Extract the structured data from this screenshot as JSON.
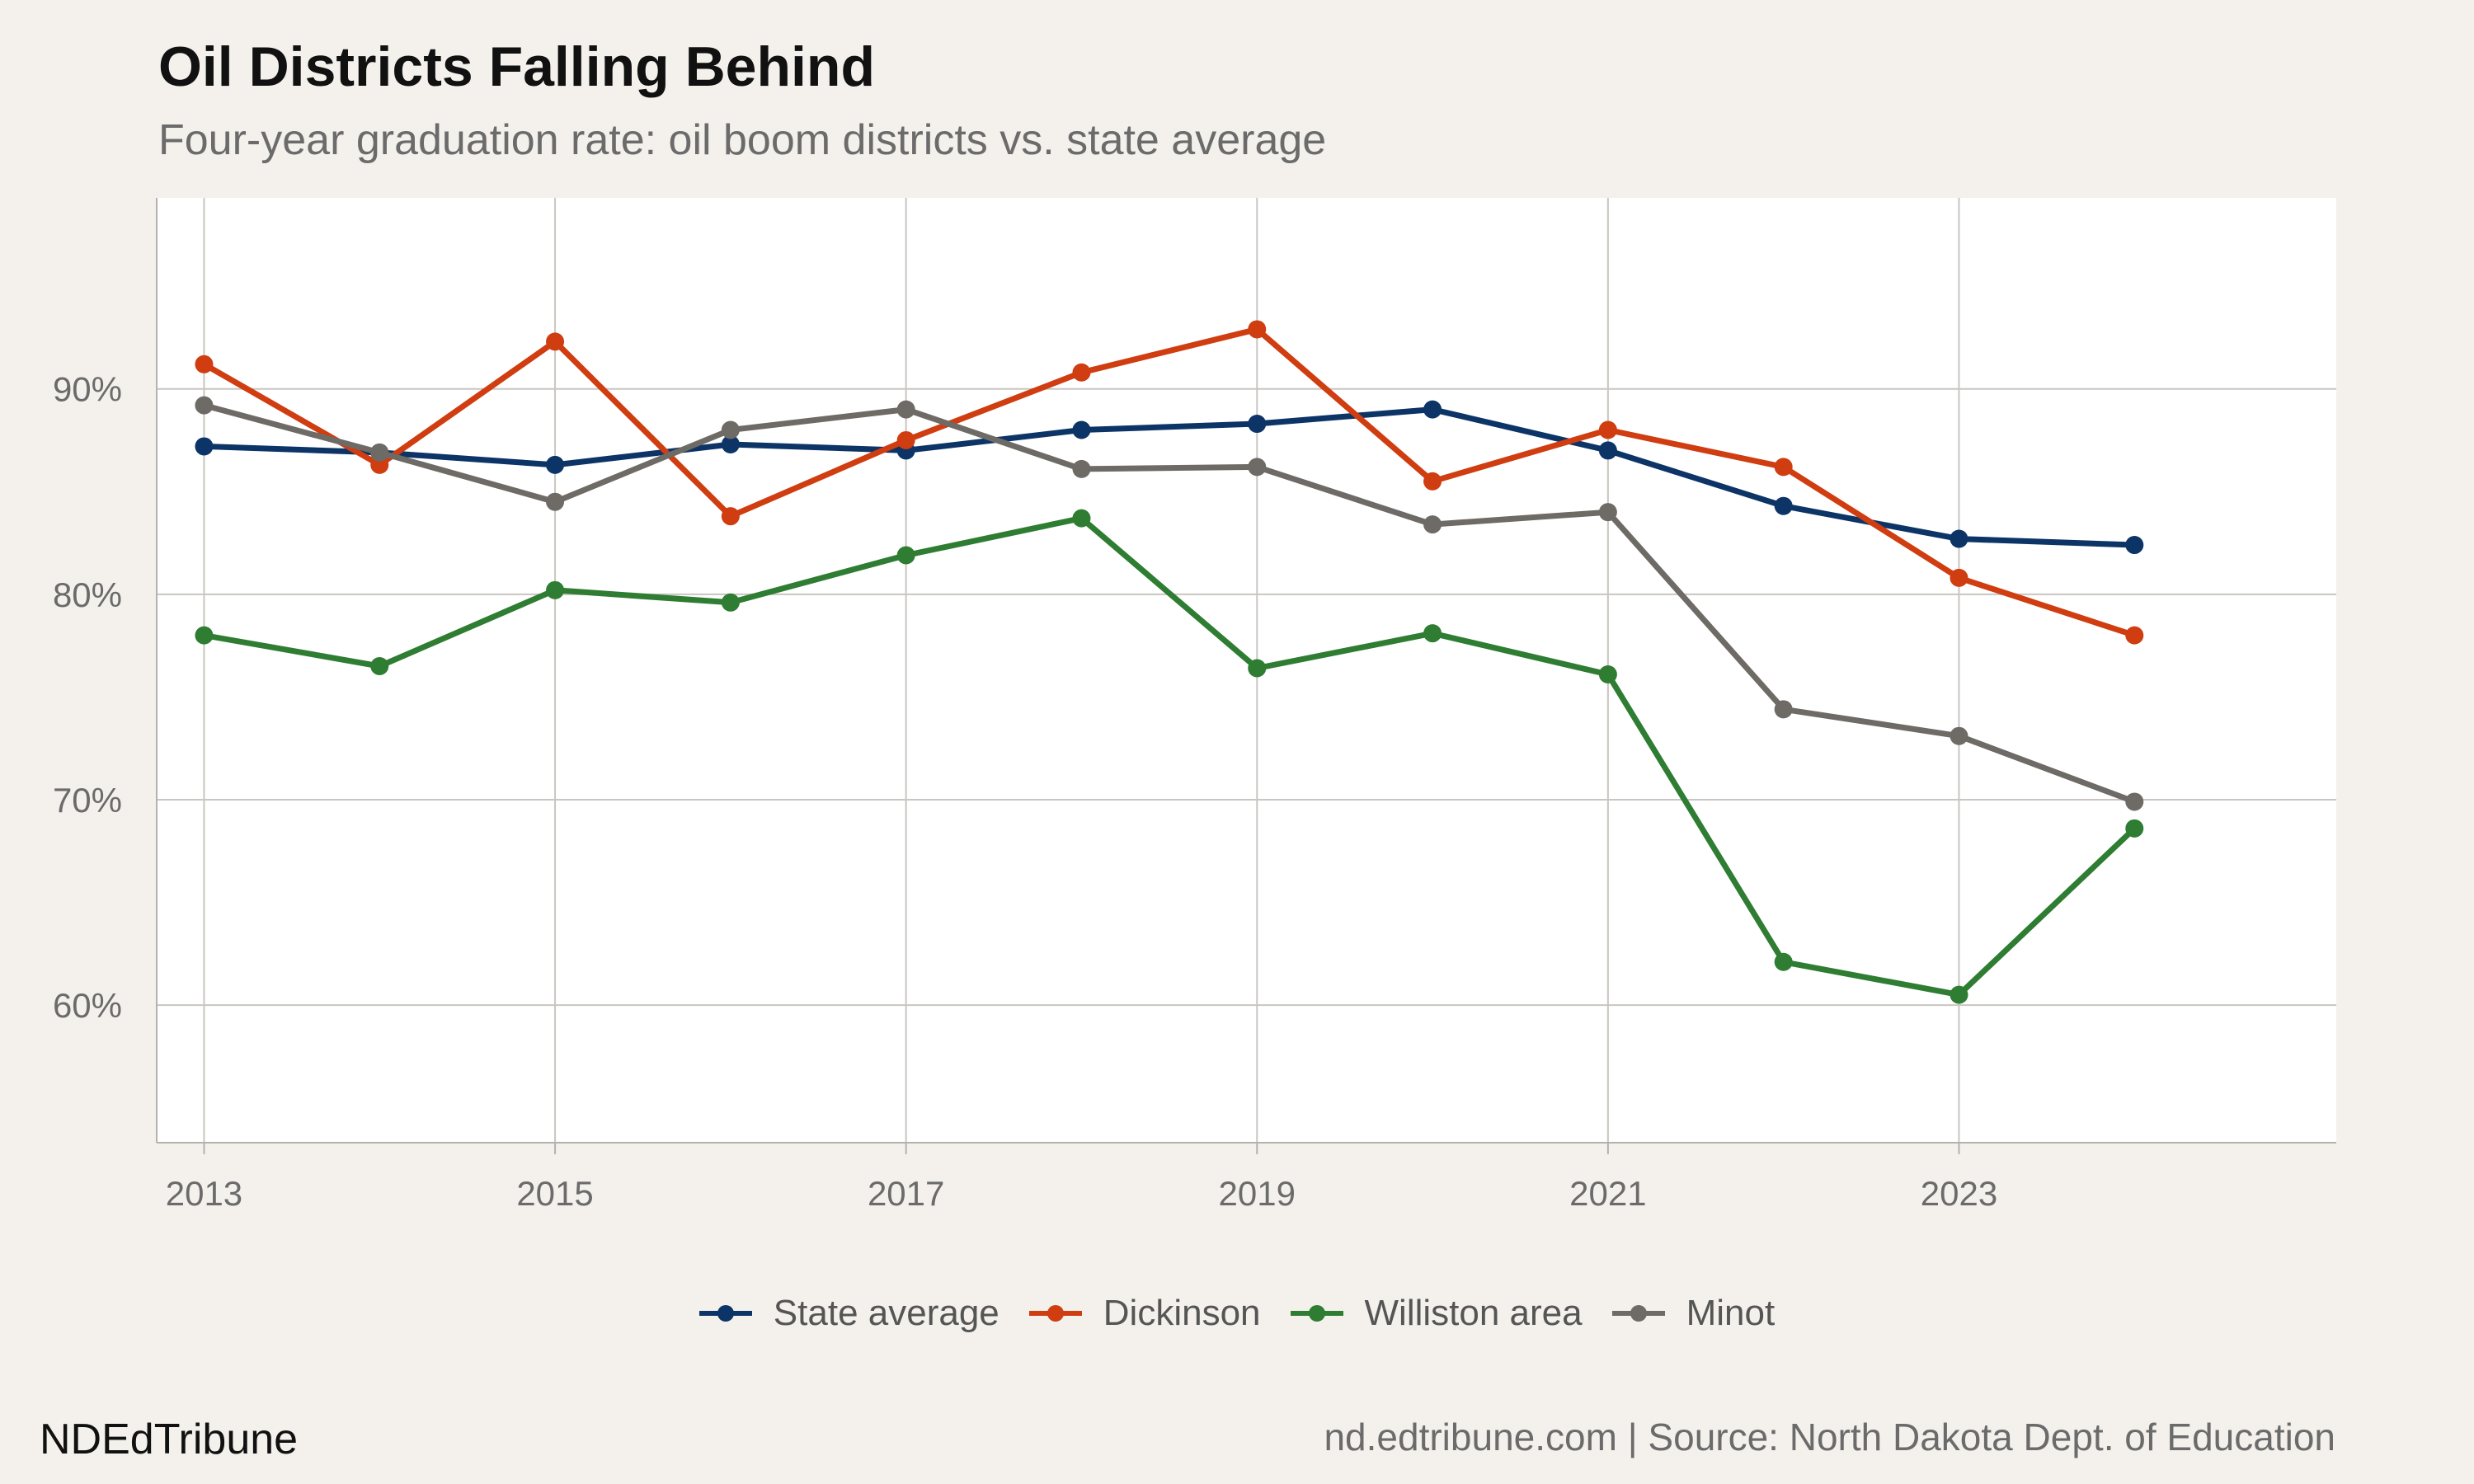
{
  "header": {
    "title": "Oil Districts Falling Behind",
    "subtitle": "Four-year graduation rate: oil boom districts vs. state average"
  },
  "footer": {
    "brand": "NDEdTribune",
    "source": "nd.edtribune.com | Source: North Dakota Dept. of Education"
  },
  "chart_data": {
    "type": "line",
    "title": "Oil Districts Falling Behind",
    "subtitle": "Four-year graduation rate: oil boom districts vs. state average",
    "xlabel": "",
    "ylabel": "",
    "x": [
      2013,
      2014,
      2015,
      2016,
      2017,
      2018,
      2019,
      2020,
      2021,
      2022,
      2023,
      2024
    ],
    "x_ticks": [
      "2013",
      "2015",
      "2017",
      "2019",
      "2021",
      "2023"
    ],
    "y_ticks": [
      "60%",
      "70%",
      "80%",
      "90%"
    ],
    "xlim": [
      2012.73,
      2025.15
    ],
    "ylim": [
      53.3,
      99.3
    ],
    "grid": true,
    "legend_position": "bottom",
    "series": [
      {
        "name": "State average",
        "color": "#0d3466",
        "values": [
          87.2,
          86.9,
          86.3,
          87.3,
          87.0,
          88.0,
          88.3,
          89.0,
          87.0,
          84.3,
          82.7,
          82.4
        ]
      },
      {
        "name": "Dickinson",
        "color": "#cf3d10",
        "values": [
          91.2,
          86.3,
          92.3,
          83.8,
          87.5,
          90.8,
          92.9,
          85.5,
          88.0,
          86.2,
          80.8,
          78.0
        ]
      },
      {
        "name": "Williston area",
        "color": "#2e7d32",
        "values": [
          78.0,
          76.5,
          80.2,
          79.6,
          81.9,
          83.7,
          76.4,
          78.1,
          76.1,
          62.1,
          60.5,
          68.6
        ]
      },
      {
        "name": "Minot",
        "color": "#6e6a66",
        "values": [
          89.2,
          86.9,
          84.5,
          88.0,
          89.0,
          86.1,
          86.2,
          83.4,
          84.0,
          74.4,
          73.1,
          69.9
        ]
      }
    ]
  }
}
